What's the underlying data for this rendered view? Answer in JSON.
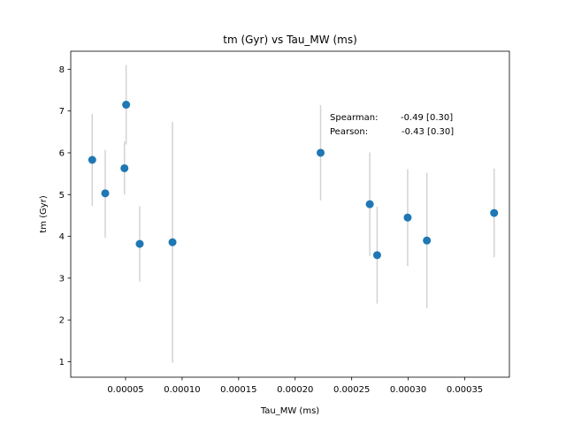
{
  "chart_data": {
    "type": "scatter",
    "title": "tm (Gyr) vs Tau_MW (ms)",
    "xlabel": "Tau_MW (ms)",
    "ylabel": "tm (Gyr)",
    "xlim": [
      1.5e-06,
      0.0003895
    ],
    "ylim": [
      0.63,
      8.43
    ],
    "xticks": [
      5e-05,
      0.0001,
      0.00015,
      0.0002,
      0.00025,
      0.0003,
      0.00035
    ],
    "xtick_labels": [
      "0.00005",
      "0.00010",
      "0.00015",
      "0.00020",
      "0.00025",
      "0.00030",
      "0.00035"
    ],
    "yticks": [
      1,
      2,
      3,
      4,
      5,
      6,
      7,
      8
    ],
    "ytick_labels": [
      "1",
      "2",
      "3",
      "4",
      "5",
      "6",
      "7",
      "8"
    ],
    "grid": false,
    "marker_color": "#1f77b4",
    "errorbar_color": "#d3d3d3",
    "points": [
      {
        "x": 2.05e-05,
        "y": 5.83,
        "ylo": 4.73,
        "yhi": 6.93
      },
      {
        "x": 3.2e-05,
        "y": 5.03,
        "ylo": 3.97,
        "yhi": 6.07
      },
      {
        "x": 4.9e-05,
        "y": 5.63,
        "ylo": 5.0,
        "yhi": 6.27
      },
      {
        "x": 5.05e-05,
        "y": 7.15,
        "ylo": 6.2,
        "yhi": 8.1
      },
      {
        "x": 6.25e-05,
        "y": 3.82,
        "ylo": 2.92,
        "yhi": 4.72
      },
      {
        "x": 9.15e-05,
        "y": 3.86,
        "ylo": 0.98,
        "yhi": 6.74
      },
      {
        "x": 0.0002225,
        "y": 6.0,
        "ylo": 4.86,
        "yhi": 7.14
      },
      {
        "x": 0.000266,
        "y": 4.77,
        "ylo": 3.53,
        "yhi": 6.01
      },
      {
        "x": 0.0002725,
        "y": 3.55,
        "ylo": 2.39,
        "yhi": 4.71
      },
      {
        "x": 0.0002995,
        "y": 4.45,
        "ylo": 3.29,
        "yhi": 5.61
      },
      {
        "x": 0.0003165,
        "y": 3.9,
        "ylo": 2.28,
        "yhi": 5.52
      },
      {
        "x": 0.000376,
        "y": 4.56,
        "ylo": 3.5,
        "yhi": 5.62
      }
    ],
    "annotations": [
      {
        "label": "Spearman:",
        "value": "-0.49 [0.30]"
      },
      {
        "label": "Pearson:",
        "value": "-0.43 [0.30]"
      }
    ]
  }
}
